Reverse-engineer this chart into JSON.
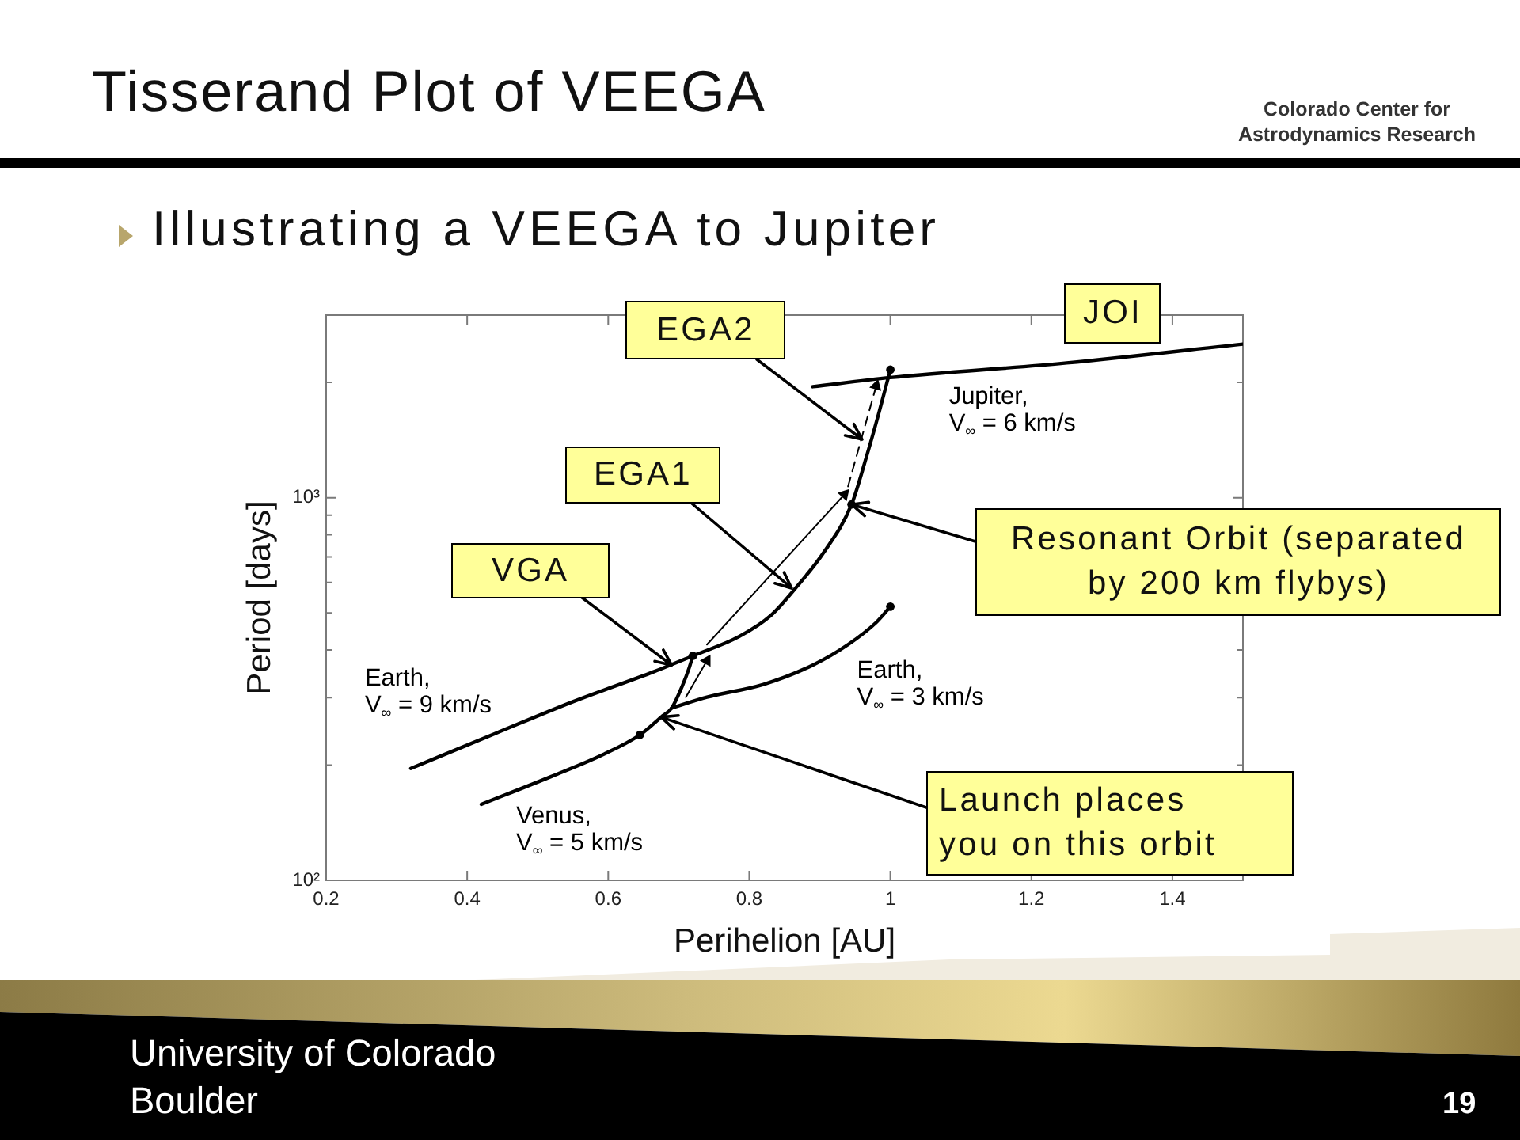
{
  "chart_data": {
    "type": "line",
    "title": "Tisserand Plot of VEEGA",
    "subtitle": "Illustrating a VEEGA to Jupiter",
    "xlabel": "Perihelion [AU]",
    "ylabel": "Period [days]",
    "series": [
      {
        "name": "Earth,\nV$_{∞}$ = 9 km/s",
        "type": "line",
        "color": "#000000",
        "x": [
          0.32,
          0.44,
          0.55,
          0.665,
          0.72,
          0.786,
          0.831,
          0.868,
          0.906,
          0.945,
          0.966,
          0.984,
          1.0
        ],
        "values": [
          196,
          242,
          293,
          351,
          386,
          434,
          493,
          587,
          721,
          960,
          1277,
          1672,
          2160
        ]
      },
      {
        "name": "Venus,\nV$_{∞}$ = 5 km/s",
        "type": "line",
        "color": "#000000",
        "x": [
          0.42,
          0.52,
          0.59,
          0.645,
          0.675,
          0.69,
          0.705,
          0.715,
          0.72
        ],
        "values": [
          158,
          187,
          212,
          240,
          267,
          282,
          322,
          360,
          386
        ]
      },
      {
        "name": "Earth,\nV$_{∞}$ = 3 km/s",
        "type": "line",
        "color": "#000000",
        "x": [
          0.69,
          0.74,
          0.82,
          0.89,
          0.94,
          0.98,
          1.0
        ],
        "values": [
          282,
          301,
          325,
          365,
          413,
          472,
          519
        ]
      },
      {
        "name": "Jupiter,\nV$_{∞}$ = 6 km/s",
        "type": "line",
        "color": "#000000",
        "x": [
          0.89,
          1.0,
          1.25,
          1.5
        ],
        "values": [
          1950,
          2060,
          2250,
          2520
        ]
      },
      {
        "type": "line",
        "color": "#000000",
        "marker": "triangle",
        "line_style": "solid",
        "x": [
          0.71,
          0.74
        ],
        "values": [
          301,
          375
        ]
      },
      {
        "type": "line",
        "color": "#000000",
        "marker": "triangle",
        "line_style": "solid",
        "x": [
          0.74,
          0.935
        ],
        "values": [
          413,
          1020
        ]
      },
      {
        "type": "line",
        "color": "#000000",
        "marker": "triangle",
        "line_style": "dashed",
        "x": [
          0.94,
          0.98
        ],
        "values": [
          1070,
          1960
        ]
      },
      {
        "type": "scatter",
        "color": "#000000",
        "marker": "circle",
        "x": [
          0.645,
          0.72,
          0.945,
          1.0,
          1.0
        ],
        "values": [
          240,
          386,
          960,
          519,
          2160
        ]
      }
    ],
    "xlim": [
      0.2,
      1.5
    ],
    "xticks": [
      0.2,
      0.4,
      0.6,
      0.8,
      1,
      1.2,
      1.4
    ],
    "ylim": [
      100,
      3000
    ],
    "yticks": [
      {
        "value": 100,
        "label": "10²"
      },
      {
        "value": 200,
        "label": null
      },
      {
        "value": 300,
        "label": null
      },
      {
        "value": 400,
        "label": null
      },
      {
        "value": 500,
        "label": null
      },
      {
        "value": 600,
        "label": null
      },
      {
        "value": 700,
        "label": null
      },
      {
        "value": 800,
        "label": null
      },
      {
        "value": 900,
        "label": null
      },
      {
        "value": 1000,
        "label": "10³"
      },
      {
        "value": 2000,
        "label": null
      },
      {
        "value": 3000,
        "label": null
      }
    ],
    "log": "y",
    "annotations": [
      {
        "text": "VGA",
        "x": 0.69,
        "y": 365
      },
      {
        "text": "EGA1",
        "x": 0.86,
        "y": 580
      },
      {
        "text": "EGA2",
        "x": 0.96,
        "y": 1420
      },
      "JOI",
      {
        "text": "Resonant Orbit (separated\nby 200 km flybys)",
        "x": 0.945,
        "y": 960
      },
      {
        "text": "Launch places\nyou on this orbit",
        "x": 0.675,
        "y": 267
      },
      "Colorado Center for\nAstrodynamics Research",
      "University of Colorado\nBoulder",
      "19"
    ]
  }
}
